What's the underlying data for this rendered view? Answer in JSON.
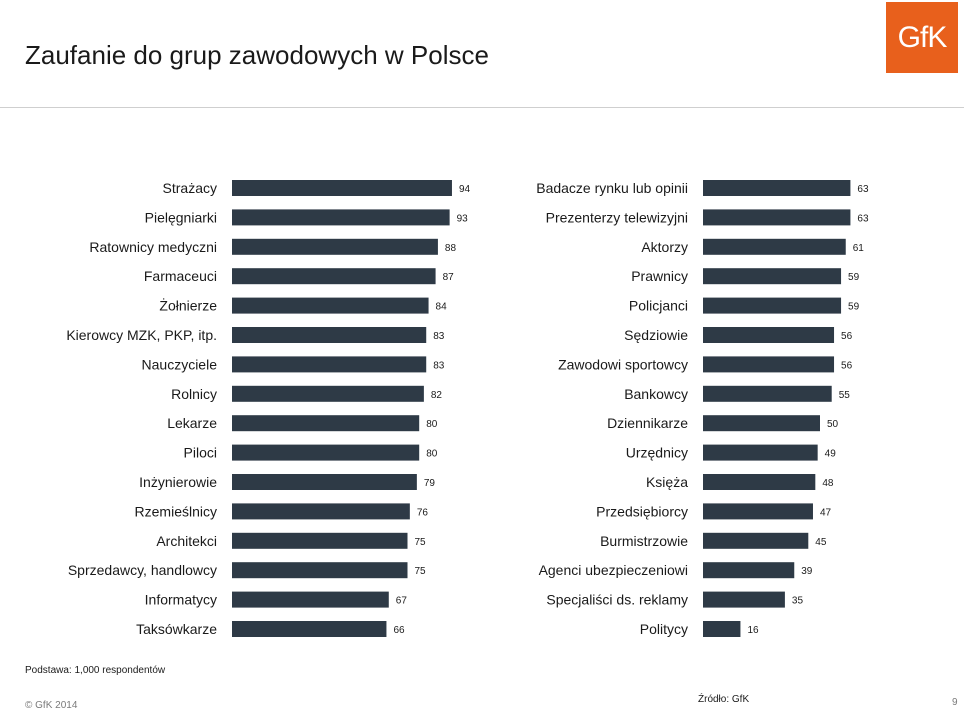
{
  "slide": {
    "title": "Zaufanie do grup zawodowych w Polsce",
    "logo_text": "GfK",
    "base_note": "Podstawa: 1,000 respondentów",
    "source_note": "Źródło: GfK",
    "copyright": "© GfK 2014",
    "page_number": "9"
  },
  "colors": {
    "bar": "#2e3a46",
    "logo": "#e8601c",
    "divider": "#cfcfcf"
  },
  "chart_data": [
    {
      "type": "bar",
      "orientation": "horizontal",
      "categories": [
        "Strażacy",
        "Pielęgniarki",
        "Ratownicy medyczni",
        "Farmaceuci",
        "Żołnierze",
        "Kierowcy MZK, PKP, itp.",
        "Nauczyciele",
        "Rolnicy",
        "Lekarze",
        "Piloci",
        "Inżynierowie",
        "Rzemieślnicy",
        "Architekci",
        "Sprzedawcy, handlowcy",
        "Informatycy",
        "Taksówkarze"
      ],
      "values": [
        94,
        93,
        88,
        87,
        84,
        83,
        83,
        82,
        80,
        80,
        79,
        76,
        75,
        75,
        67,
        66
      ],
      "value_labels": [
        "94",
        "93",
        "88",
        "87",
        "84",
        "83",
        "83",
        "82",
        "80",
        "80",
        "79",
        "76",
        "75",
        "75",
        "67",
        "66"
      ],
      "xlim": [
        0,
        100
      ],
      "grid": false
    },
    {
      "type": "bar",
      "orientation": "horizontal",
      "categories": [
        "Badacze rynku lub opinii",
        "Prezenterzy telewizyjni",
        "Aktorzy",
        "Prawnicy",
        "Policjanci",
        "Sędziowie",
        "Zawodowi sportowcy",
        "Bankowcy",
        "Dziennikarze",
        "Urzędnicy",
        "Księża",
        "Przedsiębiorcy",
        "Burmistrzowie",
        "Agenci ubezpieczeniowi",
        "Specjaliści ds. reklamy",
        "Politycy"
      ],
      "values": [
        63,
        63,
        61,
        59,
        59,
        56,
        56,
        55,
        50,
        49,
        48,
        47,
        45,
        39,
        35,
        16
      ],
      "value_labels": [
        "63",
        "63",
        "61",
        "59",
        "59",
        "56",
        "56",
        "55",
        "50",
        "49",
        "48",
        "47",
        "45",
        "39",
        "35",
        "16"
      ],
      "xlim": [
        0,
        100
      ],
      "grid": false
    }
  ]
}
